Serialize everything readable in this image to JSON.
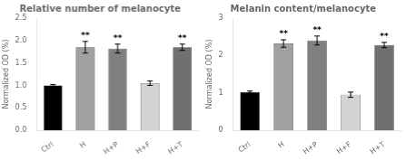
{
  "chart_data": [
    {
      "type": "bar",
      "title": "Relative number of melanocyte",
      "ylabel": "Normalized OD (%)",
      "categories": [
        "Ctrl",
        "H",
        "H+P",
        "H+F",
        "H+T"
      ],
      "values": [
        1.0,
        1.85,
        1.82,
        1.05,
        1.85
      ],
      "errors": [
        0.02,
        0.13,
        0.1,
        0.05,
        0.07
      ],
      "colors": [
        "#000000",
        "#a0a0a0",
        "#808080",
        "#d4d4d4",
        "#707070"
      ],
      "annotations": [
        {
          "x": "H",
          "text": "**"
        },
        {
          "x": "H+P",
          "text": "**"
        },
        {
          "x": "H+T",
          "text": "**"
        }
      ],
      "ylim": [
        0,
        2.5
      ],
      "yticks": [
        {
          "value": 0,
          "label": "0.0"
        },
        0.5,
        {
          "value": 1,
          "label": "1.0"
        },
        1.5,
        {
          "value": 2,
          "label": "2.0"
        },
        2.5
      ],
      "grid": false
    },
    {
      "type": "bar",
      "title": "Melanin content/melanocyte",
      "ylabel": "Normalized OD (%)",
      "categories": [
        "Ctrl",
        "H",
        "H+P",
        "H+F",
        "H+T"
      ],
      "values": [
        1.02,
        2.32,
        2.4,
        0.95,
        2.28
      ],
      "errors": [
        0.03,
        0.1,
        0.12,
        0.07,
        0.07
      ],
      "colors": [
        "#000000",
        "#a0a0a0",
        "#808080",
        "#d4d4d4",
        "#707070"
      ],
      "annotations": [
        {
          "x": "H",
          "text": "**"
        },
        {
          "x": "H+P",
          "text": "**"
        },
        {
          "x": "H+T",
          "text": "**"
        }
      ],
      "ylim": [
        0,
        3
      ],
      "yticks": [
        0,
        1,
        2,
        3
      ],
      "grid": false
    }
  ]
}
